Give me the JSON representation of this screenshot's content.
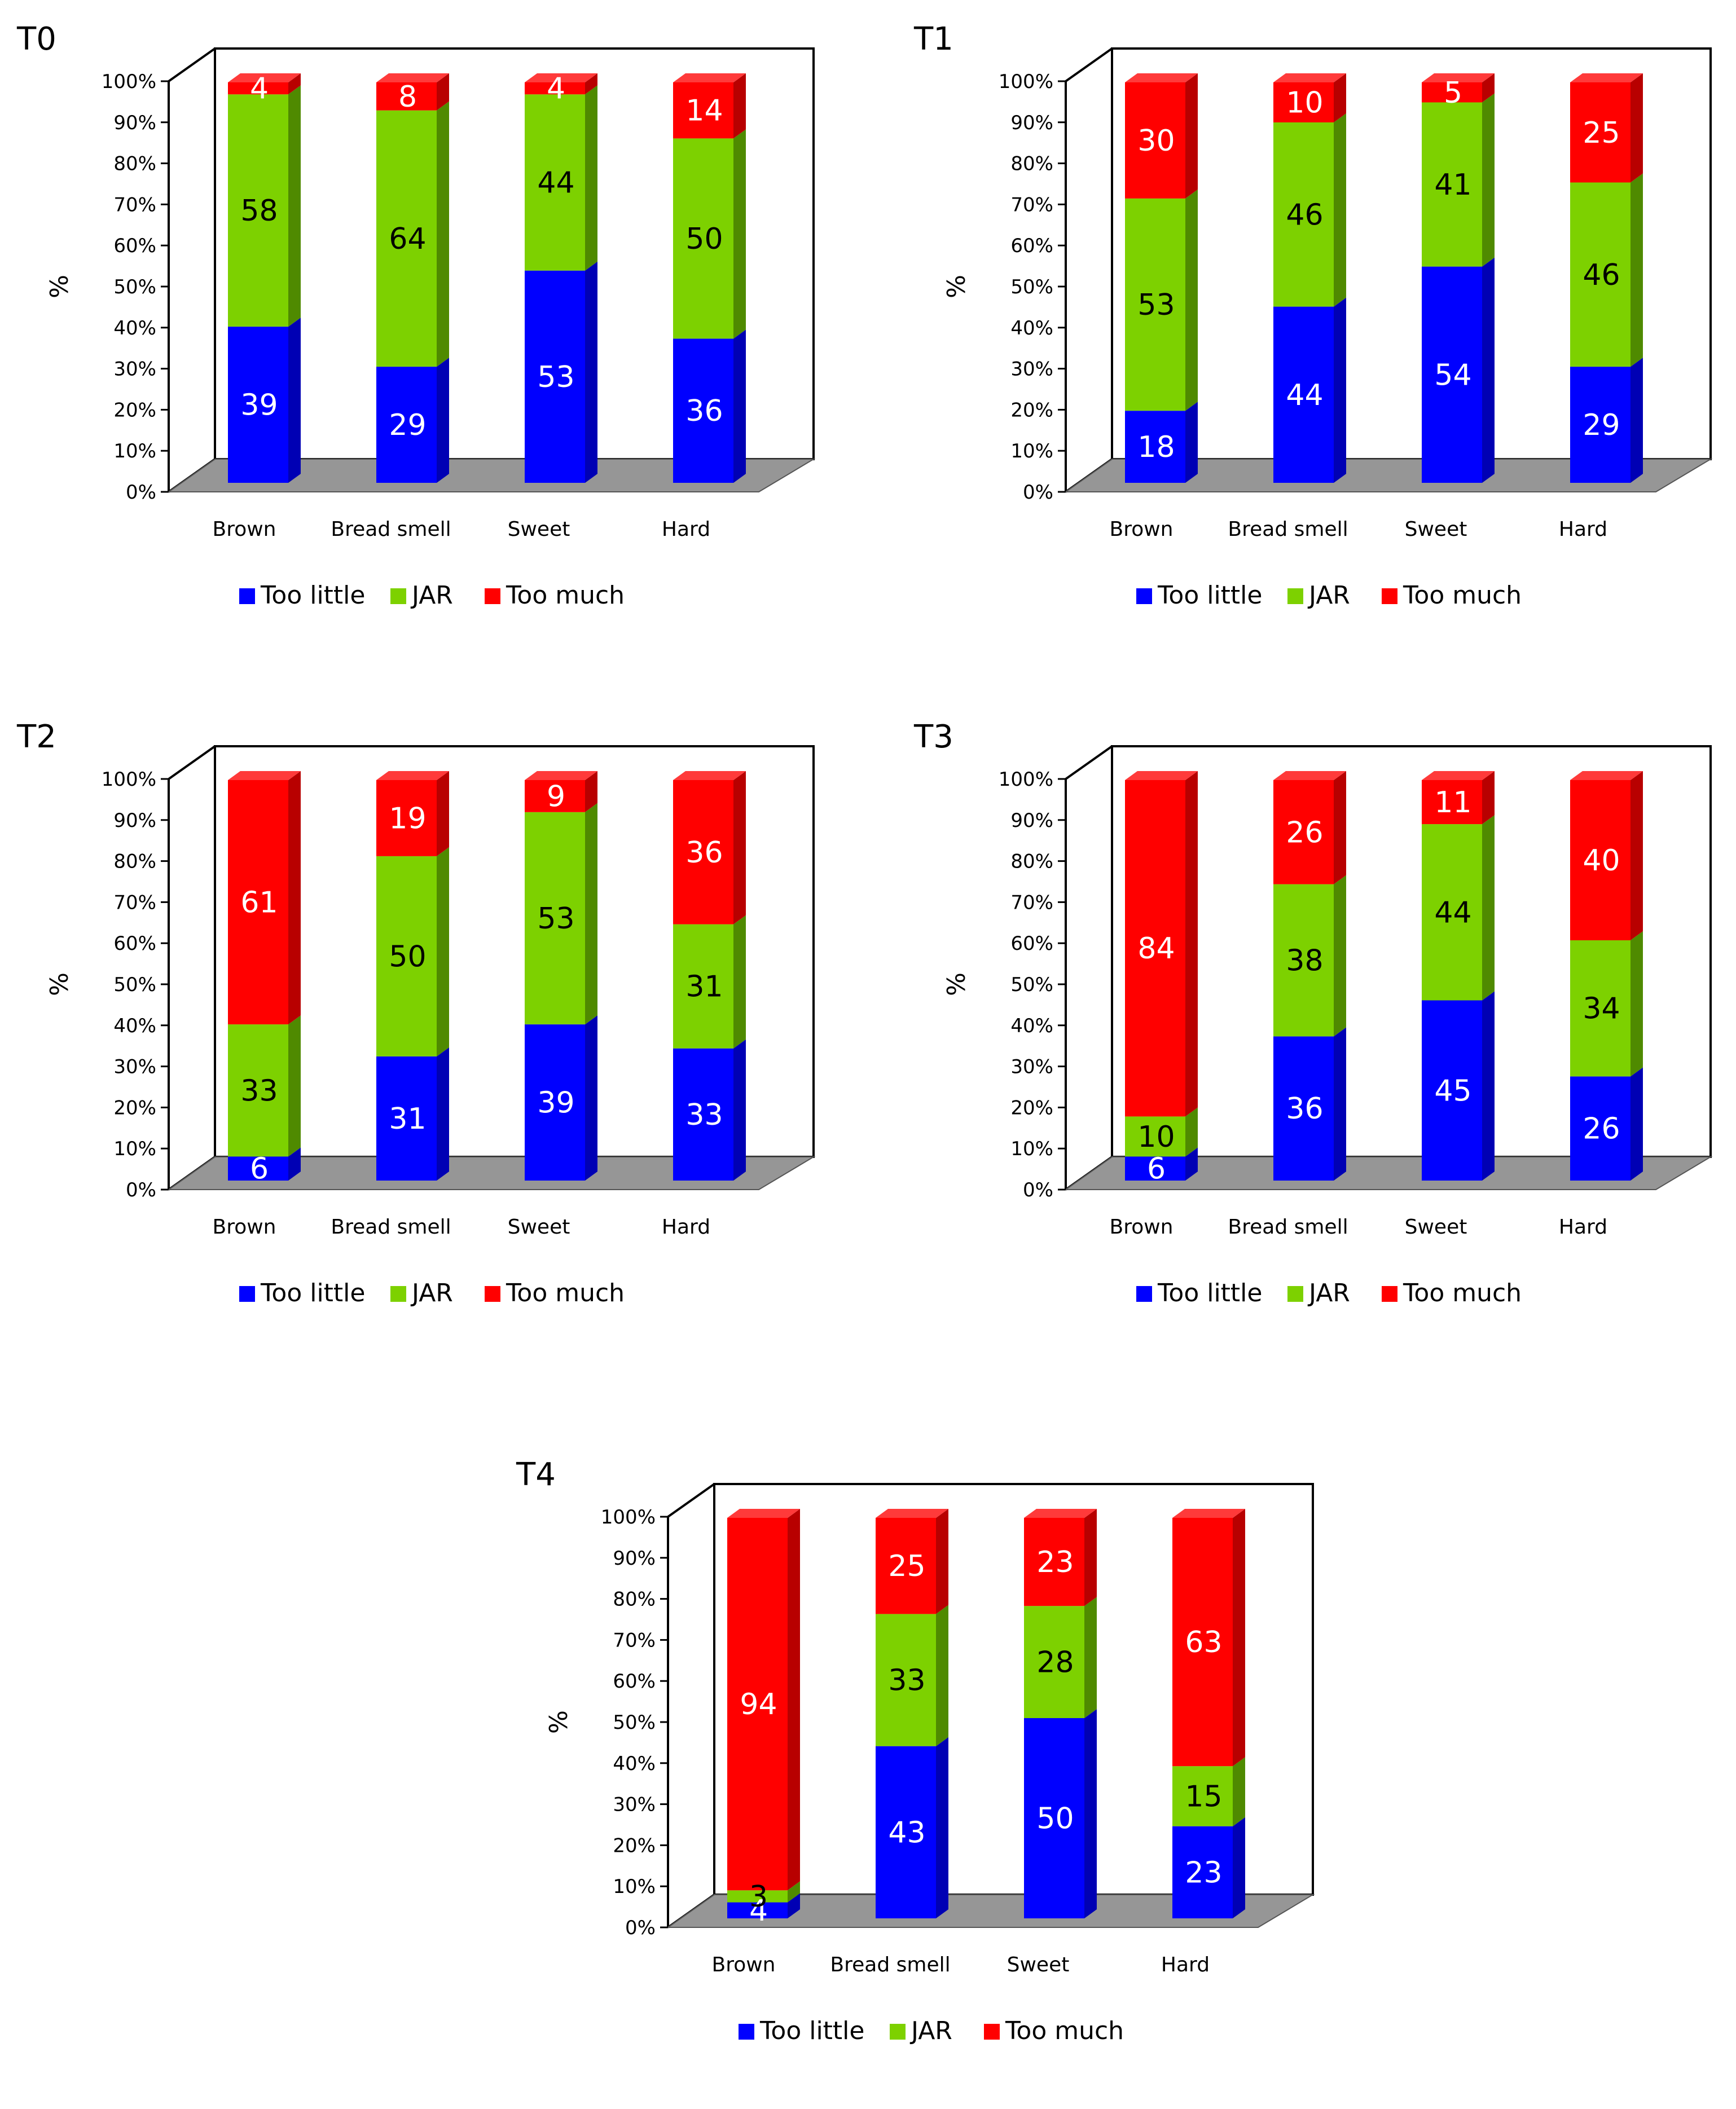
{
  "colors": {
    "too_little": "#0000ff",
    "too_little_side": "#0000b4",
    "too_little_top": "#3c3cff",
    "jar": "#7dd100",
    "jar_side": "#4f8a00",
    "jar_top": "#9be82c",
    "too_much": "#ff0000",
    "too_much_side": "#b80000",
    "too_much_top": "#ff3a3a",
    "floor": "#969696",
    "label_dark": "#000000",
    "label_light": "#ffffff"
  },
  "chart_data": [
    {
      "type": "bar",
      "title": "T0",
      "ylabel": "%",
      "ylim": [
        0,
        100
      ],
      "yticks": [
        "0%",
        "10%",
        "20%",
        "30%",
        "40%",
        "50%",
        "60%",
        "70%",
        "80%",
        "90%",
        "100%"
      ],
      "categories": [
        "Brown",
        "Bread smell",
        "Sweet",
        "Hard"
      ],
      "series": [
        {
          "name": "Too little",
          "values": [
            39,
            29,
            53,
            36
          ]
        },
        {
          "name": "JAR",
          "values": [
            58,
            64,
            44,
            50
          ]
        },
        {
          "name": "Too much",
          "values": [
            4,
            8,
            4,
            14
          ]
        }
      ],
      "legend": "bottom"
    },
    {
      "type": "bar",
      "title": "T1",
      "ylabel": "%",
      "ylim": [
        0,
        100
      ],
      "yticks": [
        "0%",
        "10%",
        "20%",
        "30%",
        "40%",
        "50%",
        "60%",
        "70%",
        "80%",
        "90%",
        "100%"
      ],
      "categories": [
        "Brown",
        "Bread smell",
        "Sweet",
        "Hard"
      ],
      "series": [
        {
          "name": "Too little",
          "values": [
            18,
            44,
            54,
            29
          ]
        },
        {
          "name": "JAR",
          "values": [
            53,
            46,
            41,
            46
          ]
        },
        {
          "name": "Too much",
          "values": [
            30,
            10,
            5,
            25
          ]
        }
      ],
      "legend": "bottom"
    },
    {
      "type": "bar",
      "title": "T2",
      "ylabel": "%",
      "ylim": [
        0,
        100
      ],
      "yticks": [
        "0%",
        "10%",
        "20%",
        "30%",
        "40%",
        "50%",
        "60%",
        "70%",
        "80%",
        "90%",
        "100%"
      ],
      "categories": [
        "Brown",
        "Bread smell",
        "Sweet",
        "Hard"
      ],
      "series": [
        {
          "name": "Too little",
          "values": [
            6,
            31,
            39,
            33
          ]
        },
        {
          "name": "JAR",
          "values": [
            33,
            50,
            53,
            31
          ]
        },
        {
          "name": "Too much",
          "values": [
            61,
            19,
            9,
            36
          ]
        }
      ],
      "legend": "bottom"
    },
    {
      "type": "bar",
      "title": "T3",
      "ylabel": "%",
      "ylim": [
        0,
        100
      ],
      "yticks": [
        "0%",
        "10%",
        "20%",
        "30%",
        "40%",
        "50%",
        "60%",
        "70%",
        "80%",
        "90%",
        "100%"
      ],
      "categories": [
        "Brown",
        "Bread smell",
        "Sweet",
        "Hard"
      ],
      "series": [
        {
          "name": "Too little",
          "values": [
            6,
            36,
            45,
            26
          ]
        },
        {
          "name": "JAR",
          "values": [
            10,
            38,
            44,
            34
          ]
        },
        {
          "name": "Too much",
          "values": [
            84,
            26,
            11,
            40
          ]
        }
      ],
      "legend": "bottom"
    },
    {
      "type": "bar",
      "title": "T4",
      "ylabel": "%",
      "ylim": [
        0,
        100
      ],
      "yticks": [
        "0%",
        "10%",
        "20%",
        "30%",
        "40%",
        "50%",
        "60%",
        "70%",
        "80%",
        "90%",
        "100%"
      ],
      "categories": [
        "Brown",
        "Bread smell",
        "Sweet",
        "Hard"
      ],
      "series": [
        {
          "name": "Too little",
          "values": [
            4,
            43,
            50,
            23
          ]
        },
        {
          "name": "JAR",
          "values": [
            3,
            33,
            28,
            15
          ]
        },
        {
          "name": "Too much",
          "values": [
            94,
            25,
            23,
            63
          ]
        }
      ],
      "legend": "bottom"
    }
  ]
}
